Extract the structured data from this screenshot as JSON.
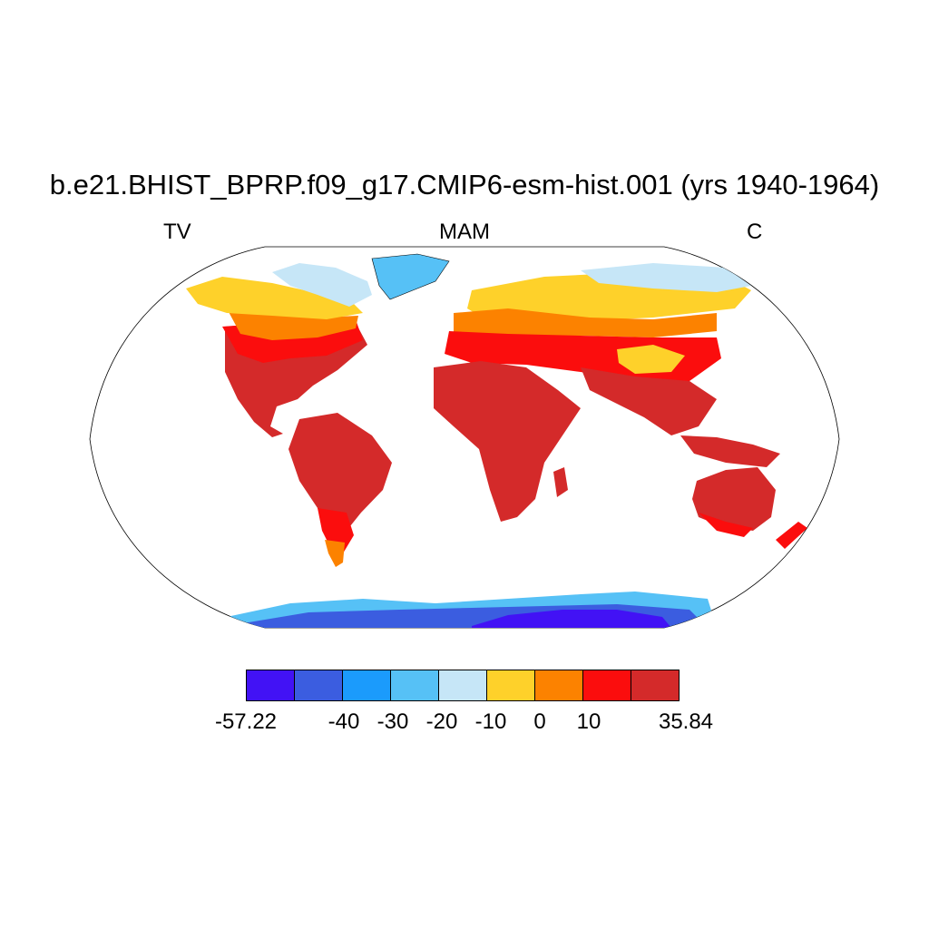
{
  "title": "b.e21.BHIST_BPRP.f09_g17.CMIP6-esm-hist.001 (yrs 1940-1964)",
  "left_label": "TV",
  "center_label": "MAM",
  "right_label": "C",
  "colorbar": {
    "colors": [
      "#4212f5",
      "#3b5de0",
      "#1b9bfc",
      "#56c1f6",
      "#c6e6f7",
      "#fed12a",
      "#fc8200",
      "#fb0d0d",
      "#d42a2a"
    ],
    "labels": [
      "-57.22",
      "-40",
      "-30",
      "-20",
      "-10",
      "0",
      "10",
      "35.84"
    ]
  },
  "map": {
    "projection": "Robinson",
    "ocean_color": "#ffffff",
    "coastline_color": "#000000"
  }
}
